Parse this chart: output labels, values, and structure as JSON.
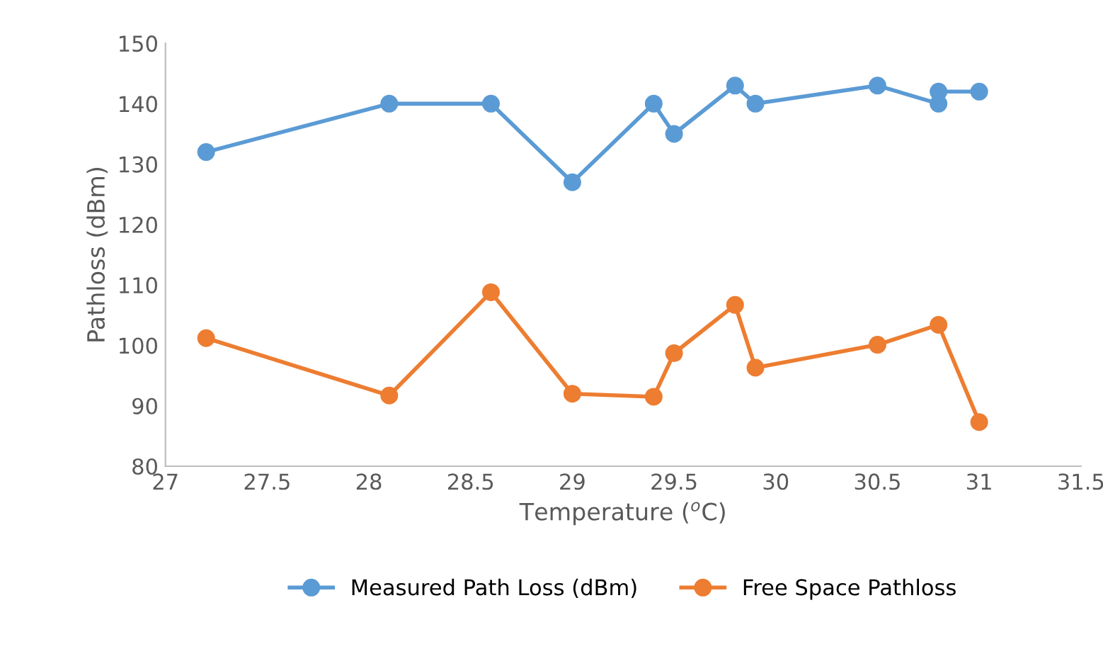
{
  "chart_data": {
    "type": "line",
    "xlabel": "Temperature ($^{o}$C)",
    "ylabel": "Pathloss (dBm)",
    "xlim": [
      27,
      31.5
    ],
    "xticks": [
      27,
      27.5,
      28,
      28.5,
      29,
      29.5,
      30,
      30.5,
      31,
      31.5
    ],
    "ylim": [
      80,
      150
    ],
    "yticks": [
      80,
      90,
      100,
      110,
      120,
      130,
      140,
      150
    ],
    "grid": false,
    "legend": "bottom",
    "marker": "circle",
    "line_style": "solid",
    "series": [
      {
        "name": "Measured Path Loss (dBm)",
        "color": "#5b9bd5",
        "x": [
          27.2,
          28.1,
          28.6,
          29,
          29.4,
          29.5,
          29.8,
          29.9,
          30.5,
          30.8,
          30.8,
          31
        ],
        "values": [
          132,
          140,
          140,
          127,
          140,
          135,
          143,
          140,
          143,
          140,
          142,
          142
        ]
      },
      {
        "name": "Free Space Pathloss",
        "color": "#ed7d31",
        "x": [
          27.2,
          28.1,
          28.6,
          29,
          29.4,
          29.5,
          29.8,
          29.9,
          30.5,
          30.8,
          31
        ],
        "values": [
          101.2,
          91.7,
          108.8,
          92,
          91.5,
          98.7,
          106.7,
          96.3,
          100.1,
          103.4,
          87.3
        ]
      }
    ]
  }
}
